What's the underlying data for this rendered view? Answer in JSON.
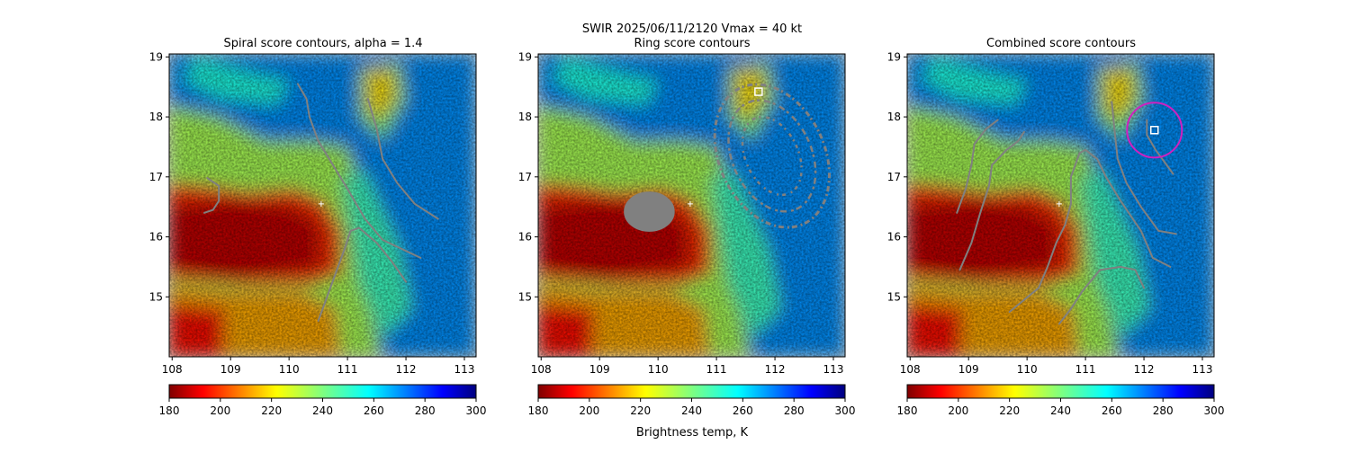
{
  "figure": {
    "suptitle": "SWIR  2025/06/11/2120    Vmax = 40 kt",
    "colorbar_label": "Brightness temp, K"
  },
  "chart_data": {
    "type": "heatmap",
    "x_ticks": [
      108,
      109,
      110,
      111,
      112,
      113
    ],
    "y_ticks": [
      15,
      16,
      17,
      18,
      19
    ],
    "xlim": [
      107.95,
      113.2
    ],
    "ylim": [
      14.0,
      19.05
    ],
    "colorbar": {
      "colormap": "jet_r",
      "range": [
        180,
        300
      ],
      "ticks": [
        180,
        200,
        220,
        240,
        260,
        280,
        300
      ]
    },
    "center_marker": {
      "lon": 110.55,
      "lat": 16.55,
      "color": "#ffffff"
    },
    "panels": [
      {
        "title": "Spiral score contours, alpha =  1.4",
        "contour_color": "#808080",
        "contours": [
          [
            [
              108.55,
              16.4
            ],
            [
              108.7,
              16.45
            ],
            [
              108.8,
              16.6
            ],
            [
              108.8,
              16.85
            ],
            [
              108.6,
              16.98
            ]
          ],
          [
            [
              110.5,
              14.6
            ],
            [
              110.65,
              15.0
            ],
            [
              110.8,
              15.4
            ],
            [
              110.95,
              15.8
            ],
            [
              111.05,
              16.1
            ],
            [
              111.2,
              16.15
            ],
            [
              111.5,
              15.9
            ],
            [
              111.75,
              15.6
            ],
            [
              112.0,
              15.25
            ]
          ],
          [
            [
              110.15,
              18.55
            ],
            [
              110.3,
              18.3
            ],
            [
              110.35,
              18.0
            ],
            [
              110.5,
              17.6
            ],
            [
              110.75,
              17.2
            ],
            [
              111.0,
              16.8
            ],
            [
              111.3,
              16.3
            ],
            [
              111.6,
              15.95
            ],
            [
              112.25,
              15.65
            ]
          ],
          [
            [
              111.35,
              18.3
            ],
            [
              111.5,
              17.8
            ],
            [
              111.6,
              17.3
            ],
            [
              111.85,
              16.9
            ],
            [
              112.15,
              16.55
            ],
            [
              112.55,
              16.3
            ]
          ]
        ]
      },
      {
        "title": "Ring score contours",
        "contour_color": "#808080",
        "blobs": [
          {
            "cx": 109.85,
            "cy": 16.42,
            "rx": 0.42,
            "ry": 0.32
          },
          {
            "cx": 111.95,
            "cy": 17.35,
            "rx": 0.9,
            "ry": 1.25,
            "rotate": -25,
            "hollow": true
          }
        ],
        "markers": [
          {
            "lon": 111.72,
            "lat": 18.42,
            "shape": "square",
            "color": "#ffffff"
          }
        ]
      },
      {
        "title": "Combined score contours",
        "contour_color": "#808080",
        "contours": [
          [
            [
              108.85,
              15.45
            ],
            [
              109.05,
              15.9
            ],
            [
              109.2,
              16.4
            ],
            [
              109.35,
              16.85
            ],
            [
              109.4,
              17.2
            ],
            [
              109.65,
              17.45
            ],
            [
              109.85,
              17.6
            ],
            [
              109.95,
              17.75
            ]
          ],
          [
            [
              109.5,
              17.95
            ],
            [
              109.3,
              17.8
            ],
            [
              109.1,
              17.55
            ],
            [
              109.05,
              17.2
            ],
            [
              108.95,
              16.8
            ],
            [
              108.8,
              16.4
            ]
          ],
          [
            [
              109.7,
              14.75
            ],
            [
              109.95,
              14.95
            ],
            [
              110.2,
              15.15
            ],
            [
              110.35,
              15.5
            ],
            [
              110.5,
              15.9
            ],
            [
              110.65,
              16.2
            ],
            [
              110.75,
              16.55
            ],
            [
              110.75,
              17.0
            ],
            [
              110.9,
              17.4
            ],
            [
              111.0,
              17.45
            ],
            [
              111.2,
              17.3
            ],
            [
              111.35,
              17.0
            ],
            [
              111.6,
              16.6
            ],
            [
              111.95,
              16.1
            ],
            [
              112.15,
              15.65
            ],
            [
              112.45,
              15.5
            ]
          ],
          [
            [
              110.55,
              14.55
            ],
            [
              110.75,
              14.8
            ],
            [
              110.95,
              15.1
            ],
            [
              111.25,
              15.45
            ],
            [
              111.6,
              15.5
            ],
            [
              111.85,
              15.45
            ],
            [
              112.0,
              15.15
            ]
          ],
          [
            [
              111.45,
              18.25
            ],
            [
              111.5,
              17.75
            ],
            [
              111.55,
              17.3
            ],
            [
              111.7,
              16.9
            ],
            [
              111.95,
              16.5
            ],
            [
              112.25,
              16.1
            ],
            [
              112.55,
              16.05
            ]
          ],
          [
            [
              112.05,
              17.95
            ],
            [
              112.05,
              17.7
            ],
            [
              112.2,
              17.45
            ],
            [
              112.35,
              17.25
            ],
            [
              112.5,
              17.05
            ]
          ]
        ],
        "markers": [
          {
            "lon": 112.18,
            "lat": 17.78,
            "shape": "square",
            "color": "#ffffff"
          }
        ],
        "circle": {
          "lon": 112.18,
          "lat": 17.78,
          "radius_deg": 0.47,
          "color": "#d020c0"
        }
      }
    ]
  }
}
